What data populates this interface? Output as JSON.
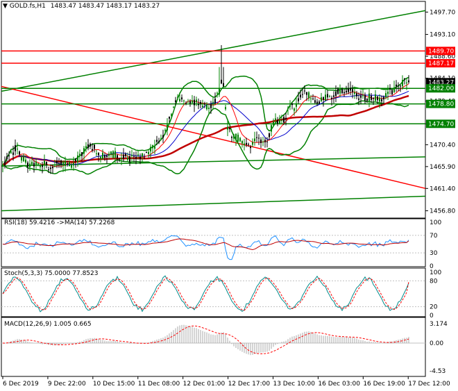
{
  "main": {
    "symbol_label": "GOLD.fs,H1",
    "ohlc": [
      "1483.47",
      "1483.47",
      "1483.17",
      "1483.27"
    ],
    "price_ticks": [
      "1497.70",
      "1493.10",
      "1488.60",
      "1484.10",
      "1479.40",
      "1474.70",
      "1470.40",
      "1465.90",
      "1461.40",
      "1456.80"
    ],
    "price_tags": [
      {
        "text": "1489.70",
        "color": "#ff0000"
      },
      {
        "text": "1487.17",
        "color": "#ff0000"
      },
      {
        "text": "1483.27",
        "color": "#000000"
      },
      {
        "text": "1482.00",
        "color": "#008000"
      },
      {
        "text": "1478.80",
        "color": "#008000"
      },
      {
        "text": "1474.70",
        "color": "#008000"
      }
    ]
  },
  "rsi": {
    "label": "RSI(18) 59.4216  ->MA(14) 57.2268",
    "ticks": [
      "100",
      "70",
      "30",
      "0"
    ]
  },
  "stoch": {
    "label": "Stoch(5,3,3) 75.0000 77.8523",
    "ticks": [
      "100",
      "80",
      "20",
      "0"
    ]
  },
  "macd": {
    "label": "MACD(12,26,9) 1.005 0.665",
    "ticks": [
      "3.174",
      "0.00",
      "-4.53"
    ]
  },
  "time_axis": [
    "6 Dec 2019",
    "9 Dec 22:00",
    "10 Dec 15:00",
    "11 Dec 08:00",
    "12 Dec 01:00",
    "12 Dec 17:00",
    "13 Dec 10:00",
    "16 Dec 03:00",
    "16 Dec 19:00",
    "17 Dec 12:00"
  ],
  "colors": {
    "bull": "#008000",
    "bear": "#000000",
    "levels": "#008000",
    "resistance": "#ff0000",
    "ma_slow": "#c00000",
    "ma_fast": "#ff0000",
    "ma_mid": "#0000cc",
    "rsi": "#1e90ff",
    "rsi_ma": "#c00000",
    "stoch_main": "#008b8b",
    "stoch_signal": "#ff0000",
    "macd_hist": "#a9a9a9",
    "macd_signal": "#ff0000"
  },
  "chart_data": [
    {
      "type": "candlestick",
      "title": "GOLD.fs,H1",
      "ylim": [
        1455.3,
        1499.9
      ],
      "horizontal_levels": [
        {
          "value": 1489.7,
          "color": "red"
        },
        {
          "value": 1487.17,
          "color": "red"
        },
        {
          "value": 1482.0,
          "color": "green"
        },
        {
          "value": 1478.8,
          "color": "green"
        },
        {
          "value": 1474.7,
          "color": "green"
        }
      ],
      "last_price": 1483.27,
      "close_path": [
        [
          0,
          1466.4
        ],
        [
          8,
          1468.0
        ],
        [
          18,
          1469.5
        ],
        [
          28,
          1467.5
        ],
        [
          40,
          1466.0
        ],
        [
          55,
          1466.5
        ],
        [
          70,
          1465.8
        ],
        [
          85,
          1466.8
        ],
        [
          100,
          1466.0
        ],
        [
          110,
          1467.8
        ],
        [
          122,
          1470.4
        ],
        [
          132,
          1469.8
        ],
        [
          142,
          1468.0
        ],
        [
          155,
          1468.6
        ],
        [
          170,
          1468.0
        ],
        [
          185,
          1467.6
        ],
        [
          200,
          1467.8
        ],
        [
          212,
          1469.3
        ],
        [
          225,
          1471.0
        ],
        [
          236,
          1473.2
        ],
        [
          244,
          1477.6
        ],
        [
          250,
          1480.5
        ],
        [
          256,
          1479.3
        ],
        [
          266,
          1479.6
        ],
        [
          276,
          1479.2
        ],
        [
          286,
          1478.6
        ],
        [
          296,
          1478.0
        ],
        [
          305,
          1479.3
        ],
        [
          312,
          1481.2
        ],
        [
          317,
          1484.4
        ],
        [
          320,
          1479.0
        ],
        [
          324,
          1473.8
        ],
        [
          330,
          1472.4
        ],
        [
          338,
          1471.8
        ],
        [
          346,
          1471.1
        ],
        [
          354,
          1470.1
        ],
        [
          362,
          1471.0
        ],
        [
          372,
          1471.4
        ],
        [
          380,
          1470.9
        ],
        [
          386,
          1473.3
        ],
        [
          392,
          1475.6
        ],
        [
          400,
          1474.6
        ],
        [
          408,
          1476.2
        ],
        [
          414,
          1478.6
        ],
        [
          420,
          1478.1
        ],
        [
          428,
          1479.8
        ],
        [
          436,
          1480.9
        ],
        [
          444,
          1480.4
        ],
        [
          452,
          1479.0
        ],
        [
          460,
          1479.9
        ],
        [
          470,
          1480.2
        ],
        [
          480,
          1481.1
        ],
        [
          490,
          1481.6
        ],
        [
          500,
          1481.7
        ],
        [
          508,
          1480.6
        ],
        [
          516,
          1479.9
        ],
        [
          526,
          1480.1
        ],
        [
          536,
          1480.3
        ],
        [
          546,
          1479.8
        ],
        [
          556,
          1481.1
        ],
        [
          566,
          1481.9
        ],
        [
          574,
          1482.6
        ],
        [
          580,
          1484.0
        ],
        [
          586,
          1483.27
        ]
      ],
      "trendlines": [
        {
          "color": "green",
          "from": [
            "6 Dec 2019",
            1481.4
          ],
          "to": [
            "17 Dec 12:00",
            1498.0
          ]
        },
        {
          "color": "red",
          "from": [
            "6 Dec 2019",
            1482.4
          ],
          "to": [
            "17 Dec 12:00",
            1461.4
          ]
        },
        {
          "color": "green",
          "from": [
            "6 Dec 2019",
            1466.0
          ],
          "to": [
            "17 Dec 12:00",
            1467.9
          ]
        },
        {
          "color": "green",
          "from": [
            "6 Dec 2019",
            1456.8
          ],
          "to": [
            "17 Dec 12:00",
            1459.8
          ]
        }
      ]
    },
    {
      "type": "line",
      "title": "RSI(18) 59.4216  ->MA(14) 57.2268",
      "ylim": [
        0,
        100
      ],
      "levels": [
        70,
        30
      ],
      "series": [
        {
          "name": "RSI(18)",
          "last": 59.4216
        },
        {
          "name": "MA(14)",
          "last": 57.2268
        }
      ]
    },
    {
      "type": "line",
      "title": "Stoch(5,3,3) 75.0000 77.8523",
      "ylim": [
        0,
        100
      ],
      "levels": [
        80,
        20
      ],
      "series": [
        {
          "name": "Main",
          "last": 75.0
        },
        {
          "name": "Signal",
          "last": 77.8523
        }
      ]
    },
    {
      "type": "bar",
      "title": "MACD(12,26,9) 1.005 0.665",
      "ylim": [
        -4.53,
        3.174
      ],
      "series": [
        {
          "name": "MACD",
          "last": 1.005
        },
        {
          "name": "Signal",
          "last": 0.665
        }
      ]
    }
  ]
}
